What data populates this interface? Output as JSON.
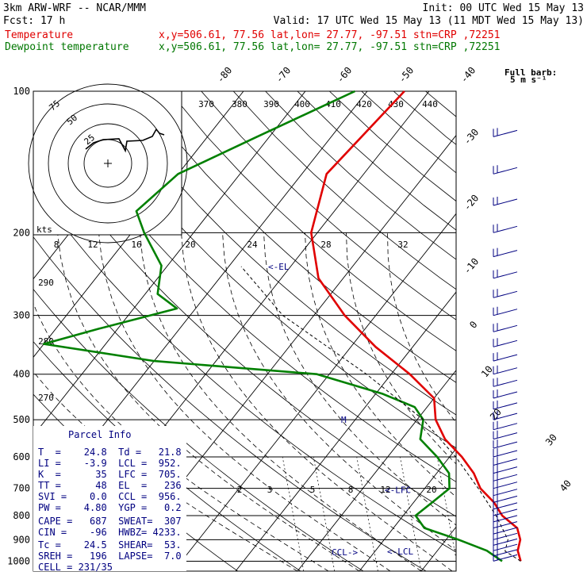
{
  "header": {
    "line1_left": "3km ARW-WRF -- NCAR/MMM",
    "line1_right": "Init: 00 UTC Wed 15 May 13",
    "line2_left": "Fcst:   17 h",
    "line2_right": "Valid: 17 UTC Wed 15 May 13 (11 MDT Wed 15 May 13)",
    "temp_label": "Temperature",
    "temp_info": "x,y=506.61, 77.56   lat,lon= 27.77, -97.51   stn=CRP ,72251",
    "dew_label": "Dewpoint temperature",
    "dew_info": "x,y=506.61, 77.56   lat,lon= 27.77, -97.51   stn=CRP ,72251"
  },
  "colors": {
    "temperature": "#e00000",
    "dewpoint": "#008000",
    "info": "#000080",
    "grid": "#000000"
  },
  "chart_data": {
    "type": "line",
    "title": "",
    "xlabel": "",
    "ylabel": "",
    "pressure_ticks": [
      "100",
      "200",
      "300",
      "400",
      "500",
      "600",
      "700",
      "800",
      "900",
      "1000"
    ],
    "temperature_ticks": [
      "-80",
      "-70",
      "-60",
      "-50",
      "-40",
      "-30",
      "-20",
      "-10",
      "0",
      "10",
      "20",
      "30",
      "40"
    ],
    "theta_labels": [
      "370",
      "380",
      "390",
      "400",
      "410",
      "420",
      "430",
      "440"
    ],
    "theta_left_labels": [
      "290",
      "280",
      "270"
    ],
    "mixing_ratio_labels": [
      "2",
      "3",
      "5",
      "8",
      "12",
      "20"
    ],
    "hodograph_speed_labels": [
      "8",
      "12",
      "16",
      "20",
      "24",
      "28",
      "32"
    ],
    "hodograph_ring_labels": [
      "75",
      "50",
      "25"
    ],
    "hodograph_kts_label": "kts",
    "wind_barb_label": "Full barb:",
    "wind_barb_unit": "5 m s⁻¹",
    "series": [
      {
        "name": "Temperature",
        "points": [
          [
            100,
            -54
          ],
          [
            150,
            -56
          ],
          [
            200,
            -51
          ],
          [
            250,
            -44
          ],
          [
            300,
            -35
          ],
          [
            350,
            -26
          ],
          [
            400,
            -17
          ],
          [
            450,
            -10
          ],
          [
            500,
            -7
          ],
          [
            550,
            -3
          ],
          [
            600,
            2
          ],
          [
            650,
            6
          ],
          [
            700,
            9
          ],
          [
            750,
            13
          ],
          [
            800,
            16
          ],
          [
            850,
            20
          ],
          [
            900,
            22
          ],
          [
            950,
            23
          ],
          [
            1000,
            24.8
          ]
        ]
      },
      {
        "name": "Dewpoint temperature",
        "points": [
          [
            100,
            -62
          ],
          [
            125,
            -72
          ],
          [
            150,
            -80
          ],
          [
            180,
            -82
          ],
          [
            200,
            -78
          ],
          [
            235,
            -71
          ],
          [
            270,
            -68
          ],
          [
            290,
            -63
          ],
          [
            320,
            -73
          ],
          [
            345,
            -80
          ],
          [
            375,
            -60
          ],
          [
            400,
            -32
          ],
          [
            440,
            -19
          ],
          [
            470,
            -12
          ],
          [
            500,
            -9
          ],
          [
            550,
            -7
          ],
          [
            600,
            -2
          ],
          [
            650,
            2
          ],
          [
            700,
            4
          ],
          [
            750,
            3
          ],
          [
            800,
            2
          ],
          [
            850,
            5
          ],
          [
            900,
            12
          ],
          [
            950,
            18
          ],
          [
            1000,
            21.8
          ]
        ]
      }
    ],
    "levels": [
      {
        "label": "<-EL",
        "pressure": 236
      },
      {
        "label": "M",
        "pressure": 500
      },
      {
        "label": "<-LFC",
        "pressure": 705
      },
      {
        "label": "<-LCL",
        "pressure": 952
      },
      {
        "label": "CCL->",
        "pressure": 956
      }
    ]
  },
  "parcel_info": {
    "title": "Parcel Info",
    "rows": [
      "T  =    24.8  Td =   21.8",
      "LI =    -3.9  LCL =  952.",
      "K  =      35  LFC =  705.",
      "TT =      48  EL  =   236",
      "SVI =    0.0  CCL =  956.",
      "PW =    4.80  YGP =   0.2",
      "CAPE =   687  SWEAT=  307",
      "CIN =    -96  HWBZ= 4233.",
      "Tc =    24.5  SHEAR=  53.",
      "SREH =   196  LAPSE=  7.0",
      "CELL = 231/35"
    ]
  }
}
